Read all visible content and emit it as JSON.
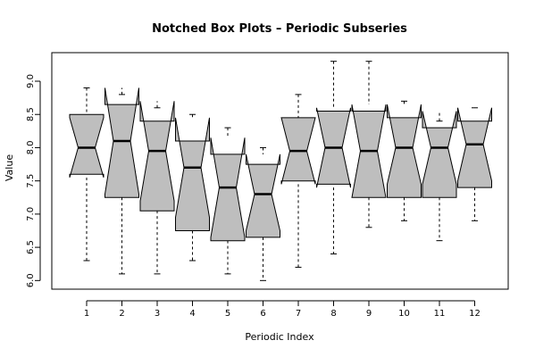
{
  "chart_data": {
    "type": "box",
    "title": "Notched Box Plots – Periodic Subseries",
    "xlabel": "Periodic Index",
    "ylabel": "Value",
    "ylim": [
      5.87,
      9.43
    ],
    "yticks": [
      "6.0",
      "6.5",
      "7.0",
      "7.5",
      "8.0",
      "8.5",
      "9.0"
    ],
    "ytick_values": [
      6.0,
      6.5,
      7.0,
      7.5,
      8.0,
      8.5,
      9.0
    ],
    "notched": true,
    "grid": false,
    "fill_color": "#bebebe",
    "categories": [
      "1",
      "2",
      "3",
      "4",
      "5",
      "6",
      "7",
      "8",
      "9",
      "10",
      "11",
      "12"
    ],
    "boxes": [
      {
        "min": 6.3,
        "q1": 7.6,
        "median": 8.0,
        "q3": 8.5,
        "max": 8.9,
        "notch_low": 7.55,
        "notch_high": 8.45
      },
      {
        "min": 6.1,
        "q1": 7.25,
        "median": 8.1,
        "q3": 8.65,
        "max": 8.8,
        "notch_low": 7.3,
        "notch_high": 8.9
      },
      {
        "min": 6.1,
        "q1": 7.05,
        "median": 7.95,
        "q3": 8.4,
        "max": 8.6,
        "notch_low": 7.2,
        "notch_high": 8.7
      },
      {
        "min": 6.3,
        "q1": 6.75,
        "median": 7.7,
        "q3": 8.1,
        "max": 8.5,
        "notch_low": 6.95,
        "notch_high": 8.45
      },
      {
        "min": 6.1,
        "q1": 6.6,
        "median": 7.4,
        "q3": 7.9,
        "max": 8.3,
        "notch_low": 6.65,
        "notch_high": 8.15
      },
      {
        "min": 6.0,
        "q1": 6.65,
        "median": 7.3,
        "q3": 7.75,
        "max": 8.0,
        "notch_low": 6.75,
        "notch_high": 7.9
      },
      {
        "min": 6.2,
        "q1": 7.5,
        "median": 7.95,
        "q3": 8.45,
        "max": 8.8,
        "notch_low": 7.45,
        "notch_high": 8.45
      },
      {
        "min": 6.4,
        "q1": 7.45,
        "median": 8.0,
        "q3": 8.55,
        "max": 9.3,
        "notch_low": 7.4,
        "notch_high": 8.6
      },
      {
        "min": 6.8,
        "q1": 7.25,
        "median": 7.95,
        "q3": 8.55,
        "max": 9.3,
        "notch_low": 7.25,
        "notch_high": 8.65
      },
      {
        "min": 6.9,
        "q1": 7.25,
        "median": 8.0,
        "q3": 8.45,
        "max": 8.7,
        "notch_low": 7.45,
        "notch_high": 8.65
      },
      {
        "min": 6.6,
        "q1": 7.25,
        "median": 8.0,
        "q3": 8.3,
        "max": 8.4,
        "notch_low": 7.45,
        "notch_high": 8.55
      },
      {
        "min": 6.9,
        "q1": 7.4,
        "median": 8.05,
        "q3": 8.4,
        "max": 8.6,
        "notch_low": 7.5,
        "notch_high": 8.6
      }
    ]
  }
}
